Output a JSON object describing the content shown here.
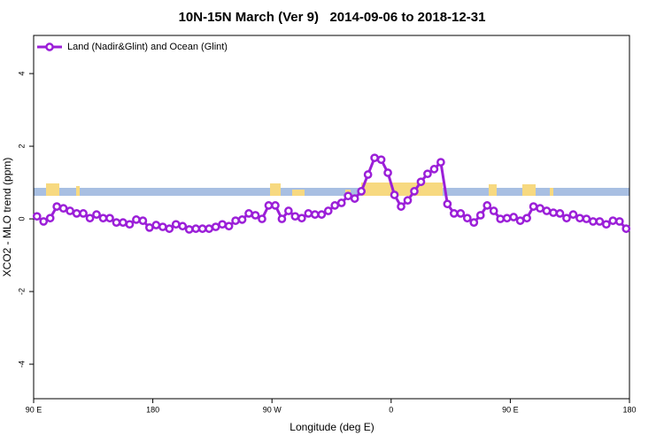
{
  "chart_data": {
    "type": "line",
    "title": "10N-15N March (Ver 9)   2014-09-06 to 2018-12-31",
    "x_label": "Longitude (deg E)",
    "y_label": "XCO2 - MLO trend (ppm)",
    "legend_position": "upper-left",
    "xlim": [
      90,
      540
    ],
    "xticks": [
      {
        "value": 90,
        "label": "90 E"
      },
      180,
      {
        "value": 270,
        "label": "90 W"
      },
      {
        "value": 360,
        "label": "0"
      },
      {
        "value": 450,
        "label": "90 E"
      },
      {
        "value": 540,
        "label": "180"
      }
    ],
    "ylim": [
      -4.95,
      5.05
    ],
    "yticks": [
      -4,
      -2,
      0,
      2,
      4
    ],
    "x": [
      92.5,
      97.5,
      102.5,
      107.5,
      112.5,
      117.5,
      122.5,
      127.5,
      132.5,
      137.5,
      142.5,
      147.5,
      152.5,
      157.5,
      162.5,
      167.5,
      172.5,
      177.5,
      182.5,
      187.5,
      192.5,
      197.5,
      202.5,
      207.5,
      212.5,
      217.5,
      222.5,
      227.5,
      232.5,
      237.5,
      242.5,
      247.5,
      252.5,
      257.5,
      262.5,
      267.5,
      272.5,
      277.5,
      282.5,
      287.5,
      292.5,
      297.5,
      302.5,
      307.5,
      312.5,
      317.5,
      322.5,
      327.5,
      332.5,
      337.5,
      342.5,
      347.5,
      352.5,
      357.5,
      362.5,
      367.5,
      372.5,
      377.5,
      382.5,
      387.5,
      392.5,
      397.5,
      402.5,
      407.5,
      412.5,
      417.5,
      422.5,
      427.5,
      432.5,
      437.5,
      442.5,
      447.5,
      452.5,
      457.5,
      462.5,
      467.5,
      472.5,
      477.5,
      482.5,
      487.5,
      492.5,
      497.5,
      502.5,
      507.5,
      512.5,
      517.5,
      522.5,
      527.5,
      532.5,
      537.5
    ],
    "series": [
      {
        "name": "Land (Nadir&Glint) and Ocean (Glint)",
        "color": "#9b1fd8",
        "values": [
          0.07,
          -0.07,
          0.02,
          0.34,
          0.29,
          0.22,
          0.15,
          0.15,
          0.02,
          0.12,
          0.02,
          0.02,
          -0.1,
          -0.1,
          -0.15,
          -0.02,
          -0.05,
          -0.24,
          -0.17,
          -0.22,
          -0.27,
          -0.15,
          -0.2,
          -0.29,
          -0.27,
          -0.27,
          -0.27,
          -0.22,
          -0.15,
          -0.2,
          -0.05,
          -0.02,
          0.15,
          0.1,
          0,
          0.37,
          0.37,
          0,
          0.22,
          0.07,
          0.02,
          0.15,
          0.12,
          0.12,
          0.22,
          0.37,
          0.44,
          0.63,
          0.56,
          0.76,
          1.22,
          1.68,
          1.63,
          1.27,
          0.66,
          0.34,
          0.51,
          0.76,
          1.02,
          1.24,
          1.37,
          1.56,
          0.41,
          0.15,
          0.15,
          0.02,
          -0.1,
          0.1,
          0.37,
          0.22,
          0,
          0.02,
          0.05,
          -0.05,
          0.02,
          0.34,
          0.29,
          0.22,
          0.17,
          0.15,
          0.02,
          0.12,
          0.02,
          0,
          -0.07,
          -0.07,
          -0.15,
          -0.05,
          -0.07,
          -0.27
        ]
      }
    ]
  }
}
